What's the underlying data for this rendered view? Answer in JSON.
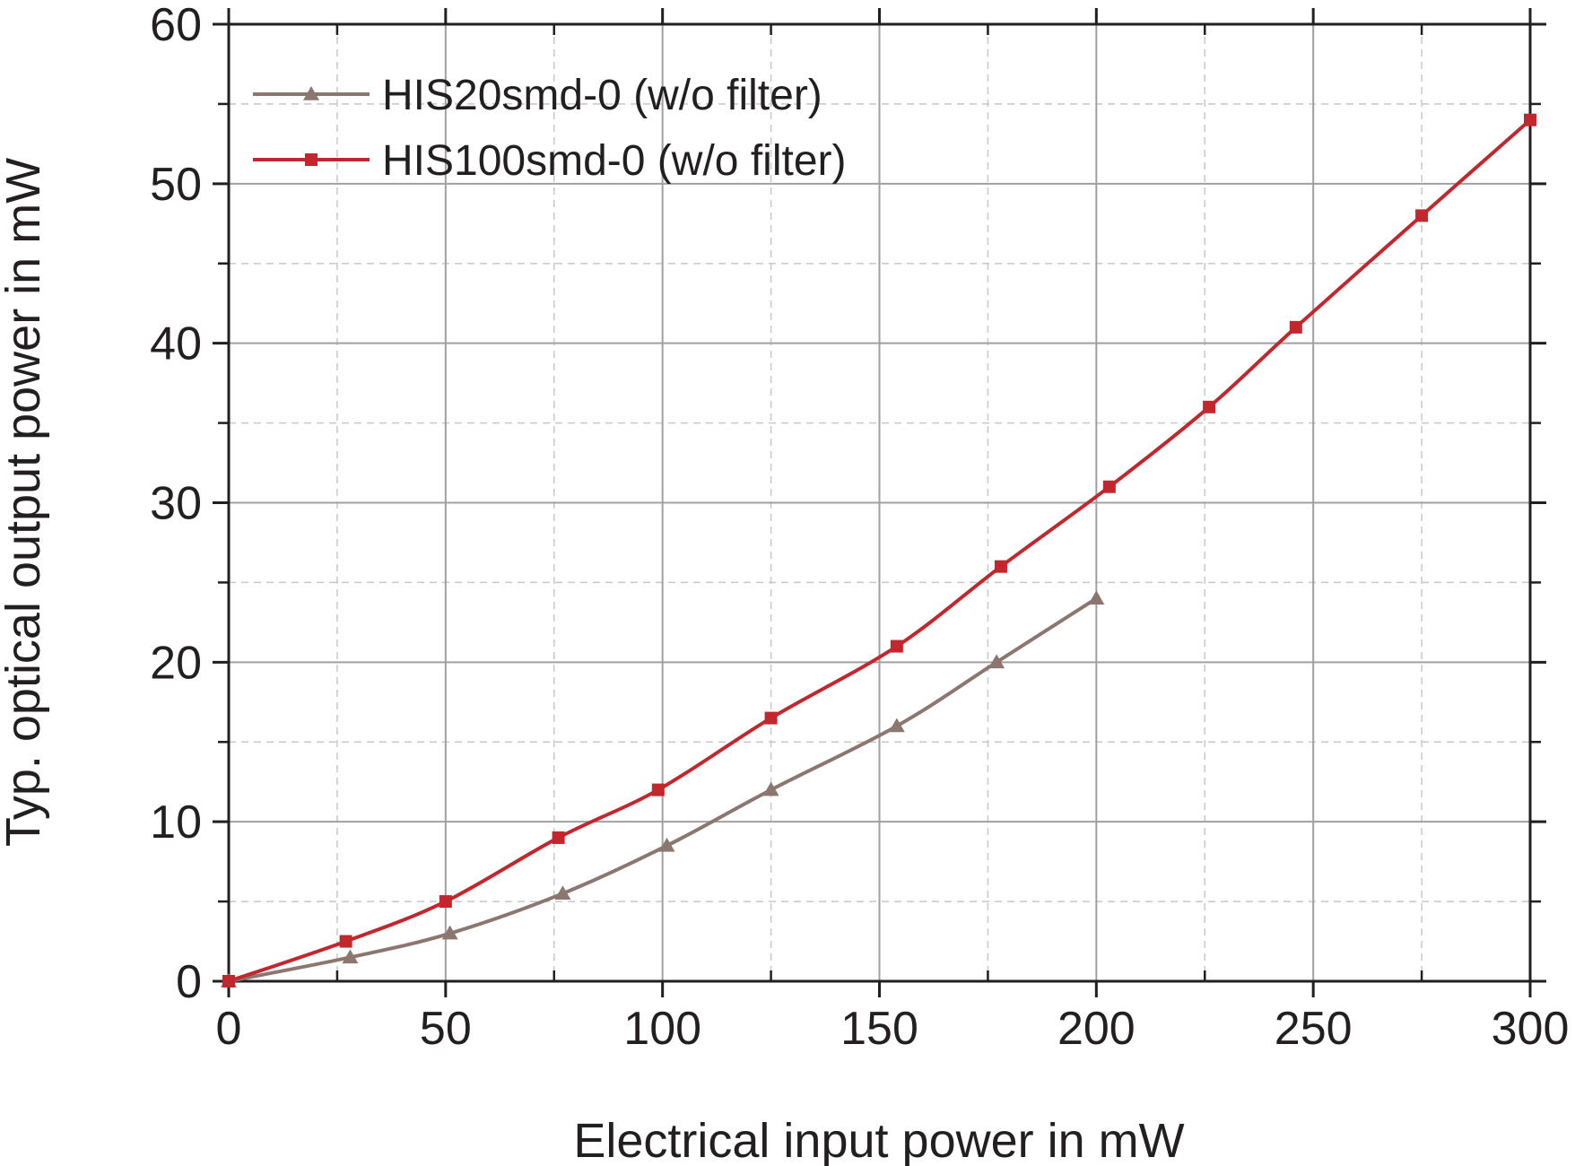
{
  "chart_data": {
    "type": "line",
    "title": "",
    "xlabel": "Electrical input power in mW",
    "ylabel": "Typ. optical output power in mW",
    "xlim": [
      0,
      300
    ],
    "ylim": [
      0,
      60
    ],
    "xticks": [
      0,
      50,
      100,
      150,
      200,
      250,
      300
    ],
    "yticks": [
      0,
      10,
      20,
      30,
      40,
      50,
      60
    ],
    "xtick_labels": [
      "0",
      "50",
      "100",
      "150",
      "200",
      "250",
      "300"
    ],
    "ytick_labels": [
      "0",
      "10",
      "20",
      "30",
      "40",
      "50",
      "60"
    ],
    "grid": true,
    "legend_position": "top-left",
    "series": [
      {
        "name": "HIS20smd-0 (w/o filter)",
        "color": "#8c7670",
        "marker": "triangle",
        "x": [
          0,
          28,
          51,
          77,
          101,
          125,
          154,
          177,
          200
        ],
        "y": [
          0,
          1.5,
          3.0,
          5.5,
          8.5,
          12.0,
          16.0,
          20.0,
          24.0
        ]
      },
      {
        "name": "HIS100smd-0 (w/o filter)",
        "color": "#c1272d",
        "marker": "square",
        "x": [
          0,
          27,
          50,
          76,
          99,
          125,
          154,
          178,
          203,
          226,
          246,
          275,
          300
        ],
        "y": [
          0,
          2.5,
          5.0,
          9.0,
          12.0,
          16.5,
          21.0,
          26.0,
          31.0,
          36.0,
          41.0,
          48.0,
          54.0
        ]
      }
    ]
  }
}
